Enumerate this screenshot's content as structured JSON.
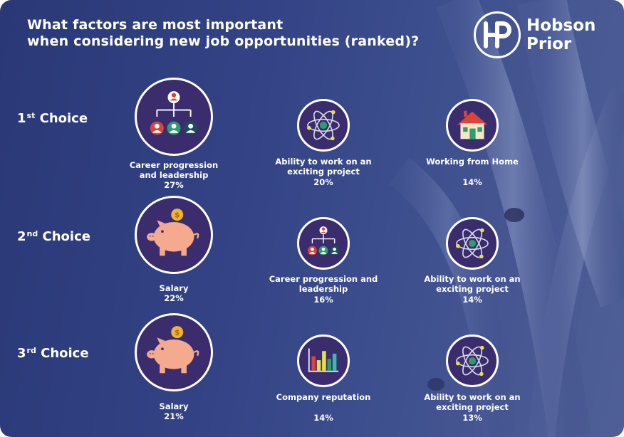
{
  "title": {
    "line1": "What factors are most important",
    "line2": "when considering new job opportunities (ranked)?"
  },
  "logo": {
    "line1": "Hobson",
    "line2": "Prior",
    "mark": "HP"
  },
  "rows": [
    {
      "ordinal": "1",
      "suffix": "st",
      "word": "Choice",
      "items": [
        {
          "label": "Career progression and leadership",
          "percent": "27%",
          "icon": "org-chart-icon"
        },
        {
          "label": "Ability to work on an exciting project",
          "percent": "20%",
          "icon": "atom-icon"
        },
        {
          "label": "Working from Home",
          "percent": "14%",
          "icon": "house-icon"
        }
      ]
    },
    {
      "ordinal": "2",
      "suffix": "nd",
      "word": "Choice",
      "items": [
        {
          "label": "Salary",
          "percent": "22%",
          "icon": "piggy-bank-icon"
        },
        {
          "label": "Career progression and leadership",
          "percent": "16%",
          "icon": "org-chart-icon"
        },
        {
          "label": "Ability to work on an exciting project",
          "percent": "14%",
          "icon": "atom-icon"
        }
      ]
    },
    {
      "ordinal": "3",
      "suffix": "rd",
      "word": "Choice",
      "items": [
        {
          "label": "Salary",
          "percent": "21%",
          "icon": "piggy-bank-icon"
        },
        {
          "label": "Company reputation",
          "percent": "14%",
          "icon": "bar-chart-icon"
        },
        {
          "label": "Ability to work on an exciting project",
          "percent": "13%",
          "icon": "atom-icon"
        }
      ]
    }
  ],
  "colors": {
    "background": "#334385",
    "circle_fill": "#3a2c6d",
    "circle_border": "#ffffff",
    "piggy": "#f5a98f",
    "coin": "#f2b233",
    "roof": "#d9453b",
    "person_red": "#d9453b",
    "person_green": "#2e9e6e",
    "person_dark": "#1f4c5c"
  }
}
